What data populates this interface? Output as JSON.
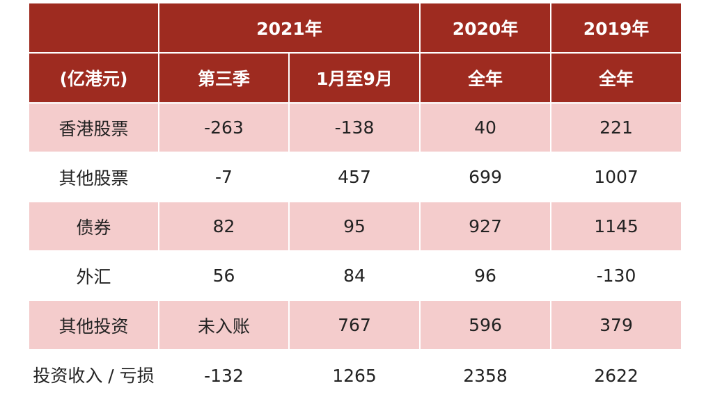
{
  "header": {
    "corner": "",
    "year_2021": "2021年",
    "year_2020": "2020年",
    "year_2019": "2019年",
    "unit": "(亿港元)",
    "col_q3": "第三季",
    "col_jan_sep": "1月至9月",
    "col_2020_full": "全年",
    "col_2019_full": "全年"
  },
  "rows": [
    {
      "label": "香港股票",
      "q3": "-263",
      "jan_sep": "-138",
      "y2020": "40",
      "y2019": "221"
    },
    {
      "label": "其他股票",
      "q3": "-7",
      "jan_sep": "457",
      "y2020": "699",
      "y2019": "1007"
    },
    {
      "label": "债券",
      "q3": "82",
      "jan_sep": "95",
      "y2020": "927",
      "y2019": "1145"
    },
    {
      "label": "外汇",
      "q3": "56",
      "jan_sep": "84",
      "y2020": "96",
      "y2019": "-130"
    },
    {
      "label": "其他投资",
      "q3": "未入账",
      "jan_sep": "767",
      "y2020": "596",
      "y2019": "379"
    },
    {
      "label": "投资收入 / 亏损",
      "q3": "-132",
      "jan_sep": "1265",
      "y2020": "2358",
      "y2019": "2622"
    }
  ],
  "colors": {
    "header_bg": "#9e2b20",
    "shaded_row_bg": "#f4cccc",
    "plain_row_bg": "#ffffff"
  }
}
